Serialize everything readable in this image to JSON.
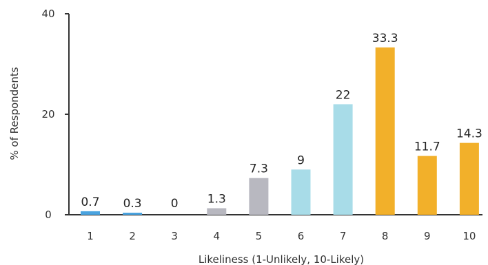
{
  "chart_data": {
    "type": "bar",
    "categories": [
      "1",
      "2",
      "3",
      "4",
      "5",
      "6",
      "7",
      "8",
      "9",
      "10"
    ],
    "values": [
      0.7,
      0.3,
      0,
      1.3,
      7.3,
      9,
      22,
      33.3,
      11.7,
      14.3
    ],
    "value_labels": [
      "0.7",
      "0.3",
      "0",
      "1.3",
      "7.3",
      "9",
      "22",
      "33.3",
      "11.7",
      "14.3"
    ],
    "bar_colors": [
      "#4aa3df",
      "#4aa3df",
      "#4aa3df",
      "#b8b8c0",
      "#b8b8c0",
      "#a8dce8",
      "#a8dce8",
      "#f2b02a",
      "#f2b02a",
      "#f2b02a"
    ],
    "xlabel": "Likeliness (1-Unlikely, 10-Likely)",
    "ylabel": "% of Respondents",
    "ylim": [
      0,
      40
    ],
    "yticks": [
      "0",
      "20",
      "40"
    ],
    "grid": false,
    "legend": "none"
  }
}
